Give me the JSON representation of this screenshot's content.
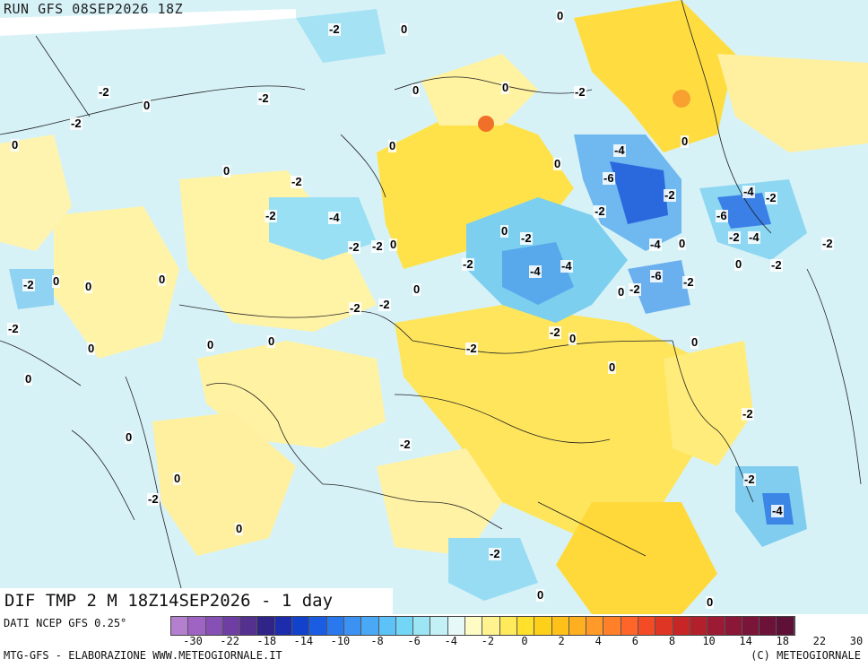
{
  "header": {
    "run_title": "RUN GFS 08SEP2026 18Z"
  },
  "map": {
    "title": "DIF TMP 2 M 18Z14SEP2026 - 1 day",
    "labels": [
      "0",
      "-2",
      "-4",
      "-6",
      "0",
      "-2",
      "0",
      "0",
      "0",
      "-2",
      "-2",
      "-2",
      "-4",
      "-2",
      "-2",
      "0",
      "-2",
      "0",
      "0",
      "0",
      "-2",
      "-2",
      "0",
      "-2",
      "0",
      "-4",
      "-2",
      "-6",
      "-4",
      "-2",
      "-2",
      "-4",
      "-2",
      "0",
      "-2",
      "0",
      "-2",
      "-4",
      "0",
      "-4",
      "-6",
      "-2",
      "0",
      "-2",
      "0",
      "-2",
      "0",
      "-2",
      "-2",
      "0",
      "0",
      "-2",
      "-2",
      "-2",
      "0",
      "0",
      "0",
      "-2",
      "-4",
      "-2",
      "0",
      "-2",
      "0",
      "0",
      "0",
      "0",
      "-2",
      "0",
      "-2",
      "0",
      "0",
      "0"
    ]
  },
  "colorbar": {
    "colors": [
      "#b57fd0",
      "#9f63c4",
      "#8750b4",
      "#6f3ea3",
      "#54308f",
      "#302488",
      "#1d2cac",
      "#1242cc",
      "#1a5ce2",
      "#2a78ee",
      "#3b92f3",
      "#4aa9f6",
      "#5cc2f7",
      "#74d6f6",
      "#9be5f5",
      "#c2f0f5",
      "#e6f8f8",
      "#fffbc4",
      "#fff38f",
      "#ffea5c",
      "#ffe02a",
      "#ffd01a",
      "#ffc01a",
      "#ffaf20",
      "#ff9a28",
      "#ff8028",
      "#ff6428",
      "#f24b26",
      "#de3524",
      "#c82626",
      "#b2202c",
      "#9c1a34",
      "#8a1638",
      "#7a1438",
      "#6c1238",
      "#5e1036"
    ],
    "ticks": [
      "-30",
      "-22",
      "-18",
      "-14",
      "-10",
      "-8",
      "-6",
      "-4",
      "-2",
      "0",
      "2",
      "4",
      "6",
      "8",
      "10",
      "14",
      "18",
      "22",
      "30"
    ]
  },
  "footer": {
    "source": "DATI NCEP GFS 0.25°",
    "credit": "MTG-GFS - ELABORAZIONE WWW.METEOGIORNALE.IT",
    "copyright": "(C) METEOGIORNALE"
  },
  "colors": {
    "yellow": "#ffe96a",
    "light_yellow": "#fff6a8",
    "cyan": "#bfeef5",
    "blue": "#1a5ce2",
    "dark_blue": "#1242cc"
  }
}
